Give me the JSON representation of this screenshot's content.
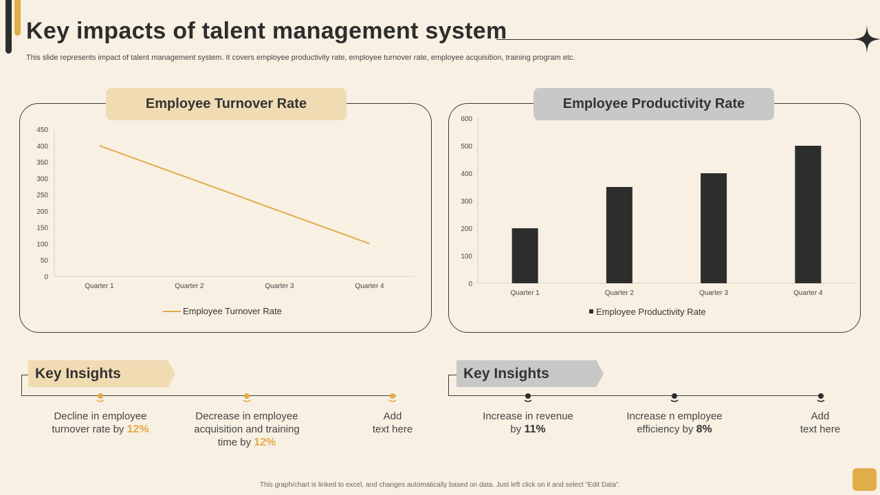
{
  "header": {
    "title": "Key impacts of talent management system",
    "subtitle": "This slide represents impact of talent management system. It covers employee productivity rate, employee turnover rate, employee acquisition, training program etc."
  },
  "colors": {
    "gold": "#e1ac4a",
    "dark": "#2d2d2d",
    "beige_tab": "#f1dbb3",
    "grey_tab": "#c8c8c8",
    "background": "#f8f0e3"
  },
  "chart_data": [
    {
      "type": "line",
      "title": "Employee Turnover Rate",
      "categories": [
        "Quarter 1",
        "Quarter 2",
        "Quarter 3",
        "Quarter 4"
      ],
      "series": [
        {
          "name": "Employee Turnover Rate",
          "values": [
            400,
            300,
            200,
            100
          ]
        }
      ],
      "ylim": [
        0,
        450
      ],
      "yticks": [
        0,
        50,
        100,
        150,
        200,
        250,
        300,
        350,
        400,
        450
      ],
      "legend": "bottom"
    },
    {
      "type": "bar",
      "title": "Employee Productivity Rate",
      "categories": [
        "Quarter 1",
        "Quarter 2",
        "Quarter 3",
        "Quarter 4"
      ],
      "series": [
        {
          "name": "Employee Productivity Rate",
          "values": [
            200,
            350,
            400,
            500
          ]
        }
      ],
      "ylim": [
        0,
        600
      ],
      "yticks": [
        0,
        100,
        200,
        300,
        400,
        500,
        600
      ],
      "legend": "bottom"
    }
  ],
  "insights_left": {
    "tag": "Key Insights",
    "items": [
      {
        "line1": "Decline in employee",
        "line2": "turnover rate by ",
        "value": "12%"
      },
      {
        "line1": "Decrease in employee",
        "line2": "acquisition and training",
        "line3": "time by ",
        "value": "12%"
      },
      {
        "line1": "Add",
        "line2": "text here"
      }
    ]
  },
  "insights_right": {
    "tag": "Key Insights",
    "items": [
      {
        "line1": "Increase in revenue",
        "line2": "by ",
        "value": "11%"
      },
      {
        "line1": "Increase n employee",
        "line2": "efficiency by ",
        "value": "8%"
      },
      {
        "line1": "Add",
        "line2": "text here"
      }
    ]
  },
  "footer": "This graph/chart is linked to excel, and changes automatically based on data. Just left click on it and select “Edit Data”."
}
